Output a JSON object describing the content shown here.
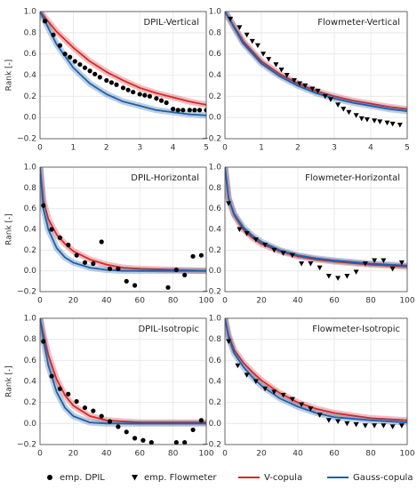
{
  "chart_data": [
    {
      "type": "line",
      "title": "DPIL-Vertical",
      "ylabel": "Rank [-]",
      "xlim": [
        0,
        5
      ],
      "ylim": [
        -0.2,
        1.0
      ],
      "xticks": [
        0,
        1,
        2,
        3,
        4,
        5
      ],
      "yticks": [
        {
          "value": -0.2,
          "label": "−0.2"
        },
        {
          "value": 0,
          "label": "0.0"
        },
        {
          "value": 0.2,
          "label": "0.2"
        },
        {
          "value": 0.4,
          "label": "0.4"
        },
        {
          "value": 0.6,
          "label": "0.6"
        },
        {
          "value": 0.8,
          "label": "0.8"
        },
        {
          "value": 1,
          "label": "1.0"
        }
      ],
      "series": [
        {
          "name": "V-copula",
          "color": "#d62728",
          "x": [
            0,
            0.5,
            1,
            1.5,
            2,
            2.5,
            3,
            3.5,
            4,
            4.5,
            5
          ],
          "values": [
            1,
            0.81,
            0.66,
            0.53,
            0.43,
            0.35,
            0.28,
            0.23,
            0.19,
            0.15,
            0.12
          ]
        },
        {
          "name": "Gauss-copula",
          "color": "#1f5fa8",
          "x": [
            0,
            0.5,
            1,
            1.5,
            2,
            2.5,
            3,
            3.5,
            4,
            4.5,
            5
          ],
          "values": [
            1,
            0.69,
            0.47,
            0.32,
            0.22,
            0.15,
            0.11,
            0.07,
            0.05,
            0.03,
            0.02
          ]
        },
        {
          "name": "emp. DPIL",
          "color": "#000000",
          "marker": "circle",
          "x": [
            0.15,
            0.4,
            0.6,
            0.75,
            0.9,
            1.05,
            1.2,
            1.35,
            1.5,
            1.65,
            1.8,
            2.0,
            2.15,
            2.3,
            2.5,
            2.65,
            2.8,
            3.0,
            3.15,
            3.3,
            3.5,
            3.65,
            3.8,
            4.0,
            4.15,
            4.3,
            4.5,
            4.65,
            4.8,
            5.0
          ],
          "values": [
            0.91,
            0.78,
            0.68,
            0.6,
            0.57,
            0.53,
            0.5,
            0.47,
            0.44,
            0.41,
            0.38,
            0.35,
            0.33,
            0.31,
            0.28,
            0.26,
            0.24,
            0.22,
            0.21,
            0.2,
            0.18,
            0.16,
            0.14,
            0.08,
            0.07,
            0.07,
            0.07,
            0.07,
            0.07,
            0.07
          ]
        }
      ]
    },
    {
      "type": "line",
      "title": "Flowmeter-Vertical",
      "xlim": [
        0,
        5
      ],
      "ylim": [
        -0.2,
        1.0
      ],
      "xticks": [
        0,
        1,
        2,
        3,
        4,
        5
      ],
      "yticks": [
        {
          "value": -0.2,
          "label": "−0.2"
        },
        {
          "value": 0,
          "label": "0.0"
        },
        {
          "value": 0.2,
          "label": "0.2"
        },
        {
          "value": 0.4,
          "label": "0.4"
        },
        {
          "value": 0.6,
          "label": "0.6"
        },
        {
          "value": 0.8,
          "label": "0.8"
        },
        {
          "value": 1,
          "label": "1.0"
        }
      ],
      "series": [
        {
          "name": "V-copula",
          "color": "#d62728",
          "x": [
            0,
            0.5,
            1,
            1.5,
            2,
            2.5,
            3,
            3.5,
            4,
            4.5,
            5
          ],
          "values": [
            1,
            0.72,
            0.53,
            0.41,
            0.32,
            0.25,
            0.2,
            0.16,
            0.13,
            0.1,
            0.08
          ]
        },
        {
          "name": "Gauss-copula",
          "color": "#1f5fa8",
          "x": [
            0,
            0.5,
            1,
            1.5,
            2,
            2.5,
            3,
            3.5,
            4,
            4.5,
            5
          ],
          "values": [
            1,
            0.7,
            0.51,
            0.39,
            0.3,
            0.23,
            0.18,
            0.14,
            0.11,
            0.08,
            0.06
          ]
        },
        {
          "name": "emp. Flowmeter",
          "color": "#000000",
          "marker": "triangle",
          "x": [
            0.15,
            0.4,
            0.6,
            0.75,
            0.9,
            1.05,
            1.2,
            1.4,
            1.55,
            1.7,
            1.9,
            2.05,
            2.2,
            2.4,
            2.55,
            2.75,
            2.9,
            3.1,
            3.25,
            3.4,
            3.6,
            3.75,
            3.9,
            4.1,
            4.25,
            4.45,
            4.6,
            4.8
          ],
          "values": [
            0.93,
            0.85,
            0.78,
            0.72,
            0.68,
            0.6,
            0.55,
            0.5,
            0.45,
            0.4,
            0.35,
            0.32,
            0.3,
            0.27,
            0.25,
            0.2,
            0.17,
            0.12,
            0.08,
            0.05,
            0.02,
            -0.01,
            -0.02,
            -0.03,
            -0.04,
            -0.05,
            -0.06,
            -0.07
          ]
        }
      ]
    },
    {
      "type": "line",
      "title": "DPIL-Horizontal",
      "ylabel": "Rank [-]",
      "xlim": [
        0,
        100
      ],
      "ylim": [
        -0.2,
        1.0
      ],
      "xticks": [
        0,
        20,
        40,
        60,
        80,
        100
      ],
      "yticks": [
        {
          "value": -0.2,
          "label": "−0.2"
        },
        {
          "value": 0,
          "label": "0.0"
        },
        {
          "value": 0.2,
          "label": "0.2"
        },
        {
          "value": 0.4,
          "label": "0.4"
        },
        {
          "value": 0.6,
          "label": "0.6"
        },
        {
          "value": 0.8,
          "label": "0.8"
        },
        {
          "value": 1,
          "label": "1.0"
        }
      ],
      "series": [
        {
          "name": "V-copula",
          "color": "#d62728",
          "x": [
            0,
            2,
            5,
            10,
            15,
            20,
            30,
            40,
            50,
            60,
            80,
            100
          ],
          "values": [
            1,
            0.68,
            0.5,
            0.35,
            0.26,
            0.19,
            0.11,
            0.06,
            0.03,
            0.02,
            0.01,
            0.0
          ]
        },
        {
          "name": "Gauss-copula",
          "color": "#1f5fa8",
          "x": [
            0,
            2,
            5,
            10,
            15,
            20,
            30,
            40,
            50,
            60,
            80,
            100
          ],
          "values": [
            1,
            0.6,
            0.4,
            0.22,
            0.13,
            0.08,
            0.03,
            0.01,
            0,
            0,
            0,
            0
          ]
        },
        {
          "name": "emp. DPIL",
          "color": "#000000",
          "marker": "circle",
          "x": [
            2,
            7,
            12,
            17,
            22,
            27,
            32,
            37,
            42,
            47,
            52,
            57,
            77,
            82,
            87,
            92,
            97
          ],
          "values": [
            0.63,
            0.4,
            0.32,
            0.25,
            0.15,
            0.08,
            0.07,
            0.28,
            0.02,
            0.02,
            -0.1,
            -0.14,
            -0.16,
            0.01,
            -0.04,
            0.14,
            0.15
          ]
        }
      ]
    },
    {
      "type": "line",
      "title": "Flowmeter-Horizontal",
      "xlim": [
        0,
        100
      ],
      "ylim": [
        -0.2,
        1.0
      ],
      "xticks": [
        0,
        20,
        40,
        60,
        80,
        100
      ],
      "yticks": [
        {
          "value": -0.2,
          "label": "−0.2"
        },
        {
          "value": 0,
          "label": "0.0"
        },
        {
          "value": 0.2,
          "label": "0.2"
        },
        {
          "value": 0.4,
          "label": "0.4"
        },
        {
          "value": 0.6,
          "label": "0.6"
        },
        {
          "value": 0.8,
          "label": "0.8"
        },
        {
          "value": 1,
          "label": "1.0"
        }
      ],
      "series": [
        {
          "name": "V-copula",
          "color": "#d62728",
          "x": [
            0,
            2,
            5,
            10,
            15,
            20,
            30,
            40,
            50,
            60,
            80,
            100
          ],
          "values": [
            1,
            0.7,
            0.54,
            0.4,
            0.32,
            0.26,
            0.19,
            0.14,
            0.11,
            0.09,
            0.06,
            0.04
          ]
        },
        {
          "name": "Gauss-copula",
          "color": "#1f5fa8",
          "x": [
            0,
            2,
            5,
            10,
            15,
            20,
            30,
            40,
            50,
            60,
            80,
            100
          ],
          "values": [
            1,
            0.7,
            0.55,
            0.42,
            0.34,
            0.28,
            0.2,
            0.15,
            0.12,
            0.1,
            0.07,
            0.05
          ]
        },
        {
          "name": "emp. Flowmeter",
          "color": "#000000",
          "marker": "triangle",
          "x": [
            2,
            8,
            12,
            17,
            22,
            27,
            32,
            37,
            42,
            47,
            52,
            57,
            62,
            67,
            72,
            77,
            82,
            87,
            92,
            97
          ],
          "values": [
            0.65,
            0.4,
            0.36,
            0.3,
            0.25,
            0.2,
            0.17,
            0.15,
            0.07,
            0.07,
            0.03,
            -0.05,
            -0.07,
            -0.05,
            -0.01,
            0.07,
            0.1,
            0.1,
            0.02,
            0.08
          ]
        }
      ]
    },
    {
      "type": "line",
      "title": "DPIL-Isotropic",
      "ylabel": "Rank [-]",
      "xlim": [
        0,
        100
      ],
      "ylim": [
        -0.2,
        1.0
      ],
      "xticks": [
        0,
        20,
        40,
        60,
        80,
        100
      ],
      "yticks": [
        {
          "value": -0.2,
          "label": "−0.2"
        },
        {
          "value": 0,
          "label": "0.0"
        },
        {
          "value": 0.2,
          "label": "0.2"
        },
        {
          "value": 0.4,
          "label": "0.4"
        },
        {
          "value": 0.6,
          "label": "0.6"
        },
        {
          "value": 0.8,
          "label": "0.8"
        },
        {
          "value": 1,
          "label": "1.0"
        }
      ],
      "series": [
        {
          "name": "V-copula",
          "color": "#d62728",
          "x": [
            0,
            2,
            5,
            10,
            15,
            20,
            30,
            40,
            50,
            60,
            80,
            100
          ],
          "values": [
            1,
            0.85,
            0.65,
            0.42,
            0.27,
            0.17,
            0.07,
            0.03,
            0.02,
            0.01,
            0.01,
            0.01
          ]
        },
        {
          "name": "Gauss-copula",
          "color": "#1f5fa8",
          "x": [
            0,
            2,
            5,
            10,
            15,
            20,
            30,
            40,
            50,
            60,
            80,
            100
          ],
          "values": [
            1,
            0.8,
            0.55,
            0.3,
            0.15,
            0.07,
            0.01,
            0,
            0,
            0,
            0,
            0
          ]
        },
        {
          "name": "emp. DPIL",
          "color": "#000000",
          "marker": "circle",
          "x": [
            2,
            7,
            12,
            17,
            22,
            27,
            32,
            37,
            42,
            47,
            52,
            57,
            62,
            67,
            82,
            87,
            92,
            97
          ],
          "values": [
            0.78,
            0.45,
            0.33,
            0.28,
            0.21,
            0.15,
            0.12,
            0.07,
            0.02,
            -0.03,
            -0.08,
            -0.14,
            -0.16,
            -0.18,
            -0.18,
            -0.18,
            -0.06,
            0.03
          ]
        }
      ]
    },
    {
      "type": "line",
      "title": "Flowmeter-Isotropic",
      "xlim": [
        0,
        100
      ],
      "ylim": [
        -0.2,
        1.0
      ],
      "xticks": [
        0,
        20,
        40,
        60,
        80,
        100
      ],
      "yticks": [
        {
          "value": -0.2,
          "label": "−0.2"
        },
        {
          "value": 0,
          "label": "0.0"
        },
        {
          "value": 0.2,
          "label": "0.2"
        },
        {
          "value": 0.4,
          "label": "0.4"
        },
        {
          "value": 0.6,
          "label": "0.6"
        },
        {
          "value": 0.8,
          "label": "0.8"
        },
        {
          "value": 1,
          "label": "1.0"
        }
      ],
      "series": [
        {
          "name": "V-copula",
          "color": "#d62728",
          "x": [
            0,
            2,
            5,
            10,
            15,
            20,
            30,
            40,
            50,
            60,
            80,
            100
          ],
          "values": [
            1,
            0.84,
            0.7,
            0.58,
            0.49,
            0.41,
            0.29,
            0.2,
            0.14,
            0.1,
            0.05,
            0.03
          ]
        },
        {
          "name": "Gauss-copula",
          "color": "#1f5fa8",
          "x": [
            0,
            2,
            5,
            10,
            15,
            20,
            30,
            40,
            50,
            60,
            80,
            100
          ],
          "values": [
            1,
            0.82,
            0.67,
            0.54,
            0.44,
            0.36,
            0.24,
            0.16,
            0.1,
            0.06,
            0.03,
            0.01
          ]
        },
        {
          "name": "emp. Flowmeter",
          "color": "#000000",
          "marker": "triangle",
          "x": [
            2,
            7,
            12,
            17,
            22,
            27,
            32,
            37,
            42,
            47,
            52,
            57,
            62,
            67,
            72,
            77,
            82,
            87,
            92,
            97
          ],
          "values": [
            0.78,
            0.55,
            0.46,
            0.4,
            0.33,
            0.3,
            0.27,
            0.23,
            0.18,
            0.14,
            0.08,
            0.03,
            0.02,
            0.0,
            -0.01,
            -0.02,
            -0.02,
            -0.02,
            -0.03,
            -0.02
          ]
        }
      ]
    }
  ]
}
